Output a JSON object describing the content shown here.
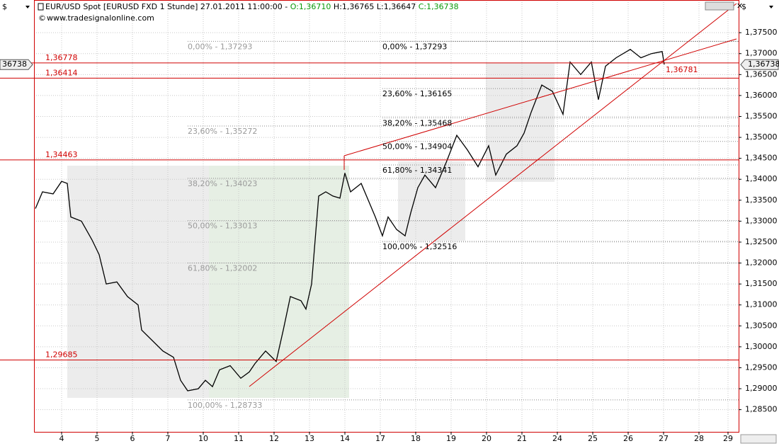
{
  "header": {
    "currency": "$",
    "instrument": "EUR/USD Spot [EURUSD FXD  1 Stunde] 27.01.2011 11:00:00 -",
    "open": "O:1,36710",
    "high": "H:1,36765",
    "low": "L:1,36647",
    "close": "C:1,36738",
    "website": "www.tradesignalonline.com"
  },
  "chart_data": {
    "type": "line",
    "color": "#000000",
    "grid": true,
    "x": [
      -0.74,
      -0.54,
      -0.24,
      0,
      0.16,
      0.26,
      0.56,
      0.86,
      1.06,
      1.26,
      1.56,
      1.86,
      2.16,
      2.26,
      2.56,
      2.86,
      3.16,
      3.36,
      3.56,
      3.86,
      4.06,
      4.26,
      4.46,
      4.76,
      5.06,
      5.3,
      5.46,
      5.76,
      6.06,
      6.26,
      6.46,
      6.76,
      6.9,
      7.06,
      7.26,
      7.46,
      7.66,
      7.86,
      8,
      8.16,
      8.46,
      8.66,
      8.86,
      9.06,
      9.22,
      9.46,
      9.7,
      9.86,
      10.06,
      10.26,
      10.56,
      10.86,
      11.16,
      11.46,
      11.76,
      12.06,
      12.26,
      12.56,
      12.86,
      13.06,
      13.26,
      13.56,
      13.86,
      14.16,
      14.36,
      14.66,
      14.96,
      15.16,
      15.36,
      15.66,
      16.06,
      16.36,
      16.66,
      16.96,
      17.02
    ],
    "values": [
      1.333,
      1.337,
      1.3365,
      1.3395,
      1.339,
      1.331,
      1.33,
      1.3255,
      1.322,
      1.315,
      1.3155,
      1.312,
      1.31,
      1.304,
      1.3015,
      1.299,
      1.2975,
      1.292,
      1.2895,
      1.29,
      1.292,
      1.2905,
      1.2945,
      1.2955,
      1.2925,
      1.294,
      1.296,
      1.299,
      1.2965,
      1.304,
      1.312,
      1.311,
      1.309,
      1.315,
      1.336,
      1.337,
      1.336,
      1.3355,
      1.3415,
      1.337,
      1.339,
      1.335,
      1.331,
      1.3265,
      1.331,
      1.328,
      1.3265,
      1.332,
      1.338,
      1.341,
      1.338,
      1.344,
      1.3505,
      1.347,
      1.343,
      1.348,
      1.341,
      1.346,
      1.348,
      1.351,
      1.356,
      1.3625,
      1.361,
      1.3555,
      1.368,
      1.365,
      1.368,
      1.359,
      1.367,
      1.369,
      1.371,
      1.369,
      1.37,
      1.3705,
      1.36738
    ],
    "xlim": [
      -0.78,
      19.12
    ],
    "xticks": [
      {
        "value": 0,
        "label": "4"
      },
      {
        "value": 1,
        "label": "5"
      },
      {
        "value": 2,
        "label": "6"
      },
      {
        "value": 3,
        "label": "7"
      },
      {
        "value": 4,
        "label": "10"
      },
      {
        "value": 5,
        "label": "11"
      },
      {
        "value": 6,
        "label": "12"
      },
      {
        "value": 7,
        "label": "13"
      },
      {
        "value": 8,
        "label": "14"
      },
      {
        "value": 9,
        "label": "17"
      },
      {
        "value": 10,
        "label": "18"
      },
      {
        "value": 11,
        "label": "19"
      },
      {
        "value": 12,
        "label": "20"
      },
      {
        "value": 13,
        "label": "21"
      },
      {
        "value": 14,
        "label": "24"
      },
      {
        "value": 15,
        "label": "25"
      },
      {
        "value": 16,
        "label": "26"
      },
      {
        "value": 17,
        "label": "27"
      },
      {
        "value": 18,
        "label": "28"
      },
      {
        "value": 18.82,
        "label": "29"
      }
    ],
    "ylim": [
      1.2797,
      1.3828
    ],
    "yticks": [
      {
        "value": 1.285,
        "label": "1,28500"
      },
      {
        "value": 1.29,
        "label": "1,29000"
      },
      {
        "value": 1.295,
        "label": "1,29500"
      },
      {
        "value": 1.3,
        "label": "1,30000"
      },
      {
        "value": 1.305,
        "label": "1,30500"
      },
      {
        "value": 1.31,
        "label": "1,31000"
      },
      {
        "value": 1.315,
        "label": "1,31500"
      },
      {
        "value": 1.32,
        "label": "1,32000"
      },
      {
        "value": 1.325,
        "label": "1,32500"
      },
      {
        "value": 1.33,
        "label": "1,33000"
      },
      {
        "value": 1.335,
        "label": "1,33500"
      },
      {
        "value": 1.34,
        "label": "1,34000"
      },
      {
        "value": 1.345,
        "label": "1,34500"
      },
      {
        "value": 1.35,
        "label": "1,35000"
      },
      {
        "value": 1.355,
        "label": "1,35500"
      },
      {
        "value": 1.36,
        "label": "1,36000"
      },
      {
        "value": 1.365,
        "label": "1,36500"
      },
      {
        "value": 1.37,
        "label": "1,37000"
      },
      {
        "value": 1.375,
        "label": "1,37500"
      }
    ],
    "levels": [
      {
        "value": 1.36778,
        "label": "1,36778"
      },
      {
        "value": 1.36414,
        "label": "1,36414"
      },
      {
        "value": 1.34463,
        "label": "1,34463"
      },
      {
        "value": 1.29685,
        "label": "1,29685"
      }
    ],
    "fib_left": [
      {
        "value": 1.37293,
        "label": "0,00% - 1,37293"
      },
      {
        "value": 1.35272,
        "label": "23,60% - 1,35272"
      },
      {
        "value": 1.34023,
        "label": "38,20% - 1,34023"
      },
      {
        "value": 1.33013,
        "label": "50,00% - 1,33013"
      },
      {
        "value": 1.32002,
        "label": "61,80% - 1,32002"
      },
      {
        "value": 1.28733,
        "label": "100,00% - 1,28733"
      }
    ],
    "fib_right": [
      {
        "value": 1.37293,
        "label": "0,00% - 1,37293"
      },
      {
        "value": 1.36165,
        "label": "23,60% - 1,36165"
      },
      {
        "value": 1.35468,
        "label": "38,20% - 1,35468"
      },
      {
        "value": 1.34904,
        "label": "50,00% - 1,34904"
      },
      {
        "value": 1.34341,
        "label": "61,80% - 1,34341"
      },
      {
        "value": 1.32516,
        "label": "100,00% - 1,32516"
      }
    ],
    "last_price": {
      "value": 1.36738,
      "label": "1,36738"
    },
    "last_price_cropped": "36738",
    "marker_label": "1,36781"
  }
}
